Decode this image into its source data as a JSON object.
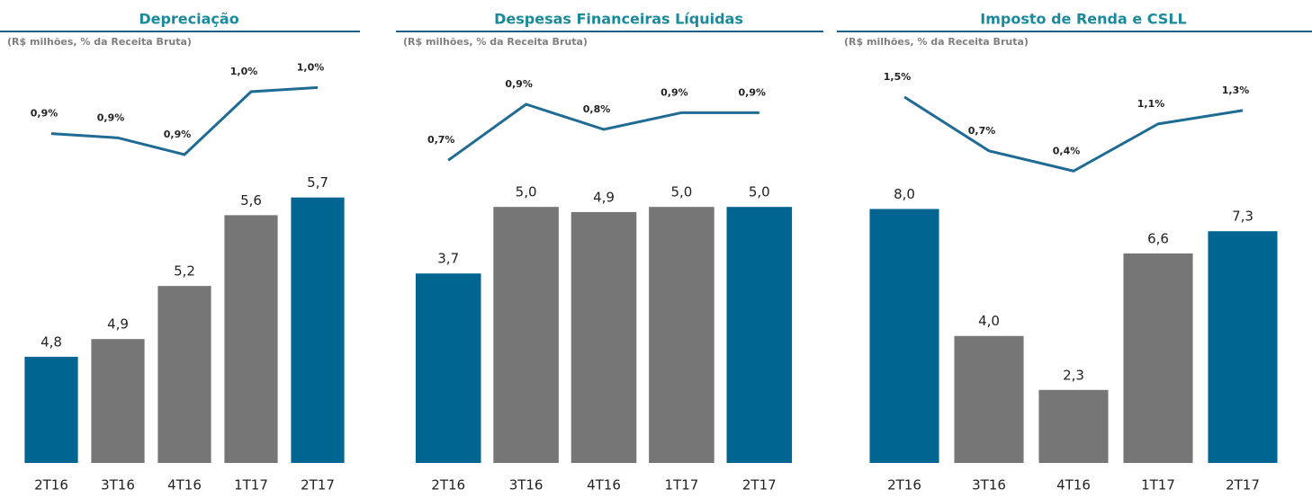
{
  "chart_data": [
    {
      "type": "bar",
      "title": "Depreciação",
      "subtitle": "(R$ milhões, % da Receita Bruta)",
      "categories": [
        "2T16",
        "3T16",
        "4T16",
        "1T17",
        "2T17"
      ],
      "values": [
        4.8,
        4.9,
        5.2,
        5.6,
        5.7
      ],
      "value_labels": [
        "4,8",
        "4,9",
        "5,2",
        "5,6",
        "5,7"
      ],
      "colors": [
        "#006591",
        "#767676",
        "#767676",
        "#767676",
        "#006591"
      ],
      "ylim": [
        4.2,
        5.8
      ],
      "series": [
        {
          "axis": "y2",
          "color": "#1f6b94",
          "values": [
            0.93,
            0.92,
            0.88,
            1.03,
            1.04
          ],
          "value_labels": [
            "0,9%",
            "0,9%",
            "0,9%",
            "1,0%",
            "1,0%"
          ]
        }
      ],
      "y2lim": [
        0.82,
        1.12
      ]
    },
    {
      "type": "bar",
      "title": "Despesas Financeiras Líquidas",
      "subtitle": "(R$ milhões, % da Receita Bruta)",
      "categories": [
        "2T16",
        "3T16",
        "4T16",
        "1T17",
        "2T17"
      ],
      "values": [
        3.7,
        5.0,
        4.9,
        5.0,
        5.0
      ],
      "value_labels": [
        "3,7",
        "5,0",
        "4,9",
        "5,0",
        "5,0"
      ],
      "colors": [
        "#006591",
        "#767676",
        "#767676",
        "#767676",
        "#006591"
      ],
      "ylim": [
        0,
        5.53
      ],
      "series": [
        {
          "axis": "y2",
          "color": "#1f6b94",
          "values": [
            0.7,
            0.9,
            0.81,
            0.87,
            0.87
          ],
          "value_labels": [
            "0,7%",
            "0,9%",
            "0,8%",
            "0,9%",
            "0,9%"
          ]
        }
      ],
      "y2lim": [
        0.63,
        1.08
      ]
    },
    {
      "type": "bar",
      "title": "Imposto de Renda e CSLL",
      "subtitle": "(R$ milhões, % da Receita Bruta)",
      "categories": [
        "2T16",
        "3T16",
        "4T16",
        "1T17",
        "2T17"
      ],
      "values": [
        8.0,
        4.0,
        2.3,
        6.6,
        7.3
      ],
      "value_labels": [
        "8,0",
        "4,0",
        "2,3",
        "6,6",
        "7,3"
      ],
      "colors": [
        "#006591",
        "#767676",
        "#767676",
        "#767676",
        "#006591"
      ],
      "ylim": [
        0,
        8.92
      ],
      "series": [
        {
          "axis": "y2",
          "color": "#1f6b94",
          "values": [
            1.5,
            0.7,
            0.4,
            1.1,
            1.3
          ],
          "value_labels": [
            "1,5%",
            "0,7%",
            "0,4%",
            "1,1%",
            "1,3%"
          ]
        }
      ],
      "y2lim": [
        0.27,
        2.14
      ]
    }
  ]
}
